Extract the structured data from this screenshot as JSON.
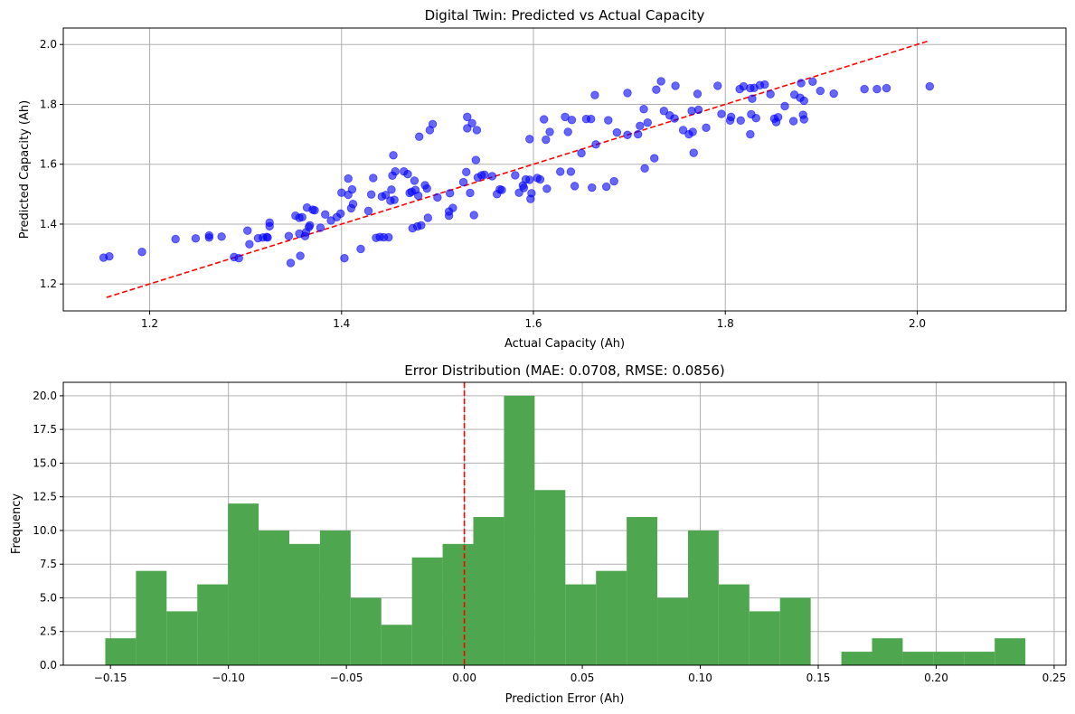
{
  "chart_data": [
    {
      "type": "scatter",
      "title": "Digital Twin: Predicted vs Actual Capacity",
      "xlabel": "Actual Capacity (Ah)",
      "ylabel": "Predicted Capacity (Ah)",
      "xlim": [
        1.11,
        2.155
      ],
      "ylim": [
        1.11,
        2.055
      ],
      "xticks": [
        1.2,
        1.4,
        1.6,
        1.8,
        2.0
      ],
      "xtick_labels": [
        "1.2",
        "1.4",
        "1.6",
        "1.8",
        "2.0"
      ],
      "yticks": [
        1.2,
        1.4,
        1.6,
        1.8,
        2.0
      ],
      "ytick_labels": [
        "1.2",
        "1.4",
        "1.6",
        "1.8",
        "2.0"
      ],
      "grid": true,
      "colors": {
        "points": "#0000ff",
        "reference_line": "#ff0000"
      },
      "reference_line": {
        "style": "dashed",
        "x": [
          1.155,
          2.012
        ],
        "y": [
          1.155,
          2.012
        ]
      },
      "points": [
        [
          1.152,
          1.288
        ],
        [
          1.158,
          1.292
        ],
        [
          1.192,
          1.307
        ],
        [
          1.227,
          1.35
        ],
        [
          1.248,
          1.352
        ],
        [
          1.262,
          1.355
        ],
        [
          1.262,
          1.362
        ],
        [
          1.275,
          1.358
        ],
        [
          1.288,
          1.29
        ],
        [
          1.293,
          1.286
        ],
        [
          1.302,
          1.378
        ],
        [
          1.304,
          1.333
        ],
        [
          1.313,
          1.353
        ],
        [
          1.318,
          1.355
        ],
        [
          1.322,
          1.357
        ],
        [
          1.323,
          1.355
        ],
        [
          1.325,
          1.405
        ],
        [
          1.325,
          1.393
        ],
        [
          1.345,
          1.36
        ],
        [
          1.347,
          1.27
        ],
        [
          1.352,
          1.428
        ],
        [
          1.356,
          1.421
        ],
        [
          1.356,
          1.368
        ],
        [
          1.357,
          1.294
        ],
        [
          1.359,
          1.423
        ],
        [
          1.362,
          1.36
        ],
        [
          1.363,
          1.373
        ],
        [
          1.364,
          1.455
        ],
        [
          1.366,
          1.39
        ],
        [
          1.367,
          1.396
        ],
        [
          1.37,
          1.448
        ],
        [
          1.372,
          1.446
        ],
        [
          1.378,
          1.388
        ],
        [
          1.383,
          1.432
        ],
        [
          1.389,
          1.412
        ],
        [
          1.395,
          1.423
        ],
        [
          1.399,
          1.435
        ],
        [
          1.4,
          1.505
        ],
        [
          1.403,
          1.286
        ],
        [
          1.407,
          1.498
        ],
        [
          1.407,
          1.552
        ],
        [
          1.41,
          1.453
        ],
        [
          1.411,
          1.516
        ],
        [
          1.412,
          1.467
        ],
        [
          1.42,
          1.317
        ],
        [
          1.428,
          1.444
        ],
        [
          1.431,
          1.499
        ],
        [
          1.433,
          1.554
        ],
        [
          1.436,
          1.354
        ],
        [
          1.44,
          1.357
        ],
        [
          1.442,
          1.492
        ],
        [
          1.444,
          1.356
        ],
        [
          1.446,
          1.497
        ],
        [
          1.449,
          1.356
        ],
        [
          1.451,
          1.478
        ],
        [
          1.452,
          1.515
        ],
        [
          1.453,
          1.562
        ],
        [
          1.454,
          1.63
        ],
        [
          1.455,
          1.481
        ],
        [
          1.456,
          1.576
        ],
        [
          1.465,
          1.576
        ],
        [
          1.469,
          1.567
        ],
        [
          1.471,
          1.504
        ],
        [
          1.473,
          1.508
        ],
        [
          1.474,
          1.386
        ],
        [
          1.476,
          1.545
        ],
        [
          1.477,
          1.514
        ],
        [
          1.479,
          1.392
        ],
        [
          1.48,
          1.495
        ],
        [
          1.481,
          1.692
        ],
        [
          1.483,
          1.396
        ],
        [
          1.487,
          1.53
        ],
        [
          1.489,
          1.519
        ],
        [
          1.49,
          1.421
        ],
        [
          1.492,
          1.714
        ],
        [
          1.495,
          1.734
        ],
        [
          1.5,
          1.489
        ],
        [
          1.512,
          1.428
        ],
        [
          1.512,
          1.442
        ],
        [
          1.513,
          1.503
        ],
        [
          1.516,
          1.454
        ],
        [
          1.527,
          1.54
        ],
        [
          1.53,
          1.574
        ],
        [
          1.531,
          1.72
        ],
        [
          1.531,
          1.758
        ],
        [
          1.534,
          1.504
        ],
        [
          1.536,
          1.737
        ],
        [
          1.538,
          1.43
        ],
        [
          1.54,
          1.614
        ],
        [
          1.541,
          1.714
        ],
        [
          1.542,
          1.556
        ],
        [
          1.546,
          1.563
        ],
        [
          1.549,
          1.565
        ],
        [
          1.557,
          1.56
        ],
        [
          1.562,
          1.5
        ],
        [
          1.565,
          1.516
        ],
        [
          1.567,
          1.514
        ],
        [
          1.581,
          1.563
        ],
        [
          1.585,
          1.505
        ],
        [
          1.589,
          1.529
        ],
        [
          1.59,
          1.521
        ],
        [
          1.592,
          1.549
        ],
        [
          1.596,
          1.684
        ],
        [
          1.596,
          1.548
        ],
        [
          1.597,
          1.484
        ],
        [
          1.598,
          1.503
        ],
        [
          1.604,
          1.554
        ],
        [
          1.607,
          1.549
        ],
        [
          1.611,
          1.75
        ],
        [
          1.613,
          1.682
        ],
        [
          1.614,
          1.518
        ],
        [
          1.617,
          1.708
        ],
        [
          1.628,
          1.575
        ],
        [
          1.633,
          1.758
        ],
        [
          1.636,
          1.708
        ],
        [
          1.639,
          1.575
        ],
        [
          1.64,
          1.748
        ],
        [
          1.643,
          1.527
        ],
        [
          1.65,
          1.637
        ],
        [
          1.655,
          1.751
        ],
        [
          1.66,
          1.751
        ],
        [
          1.661,
          1.522
        ],
        [
          1.664,
          1.831
        ],
        [
          1.665,
          1.666
        ],
        [
          1.676,
          1.525
        ],
        [
          1.678,
          1.747
        ],
        [
          1.684,
          1.543
        ],
        [
          1.687,
          1.706
        ],
        [
          1.698,
          1.838
        ],
        [
          1.698,
          1.698
        ],
        [
          1.709,
          1.7
        ],
        [
          1.711,
          1.728
        ],
        [
          1.715,
          1.784
        ],
        [
          1.716,
          1.586
        ],
        [
          1.719,
          1.739
        ],
        [
          1.726,
          1.62
        ],
        [
          1.728,
          1.849
        ],
        [
          1.733,
          1.877
        ],
        [
          1.736,
          1.778
        ],
        [
          1.742,
          1.763
        ],
        [
          1.747,
          1.753
        ],
        [
          1.748,
          1.862
        ],
        [
          1.756,
          1.714
        ],
        [
          1.762,
          1.7
        ],
        [
          1.765,
          1.778
        ],
        [
          1.766,
          1.708
        ],
        [
          1.767,
          1.638
        ],
        [
          1.771,
          1.835
        ],
        [
          1.772,
          1.782
        ],
        [
          1.78,
          1.722
        ],
        [
          1.792,
          1.862
        ],
        [
          1.796,
          1.768
        ],
        [
          1.805,
          1.746
        ],
        [
          1.806,
          1.758
        ],
        [
          1.815,
          1.851
        ],
        [
          1.816,
          1.746
        ],
        [
          1.819,
          1.86
        ],
        [
          1.826,
          1.7
        ],
        [
          1.826,
          1.854
        ],
        [
          1.827,
          1.767
        ],
        [
          1.828,
          1.819
        ],
        [
          1.83,
          1.855
        ],
        [
          1.832,
          1.754
        ],
        [
          1.836,
          1.864
        ],
        [
          1.841,
          1.866
        ],
        [
          1.847,
          1.834
        ],
        [
          1.851,
          1.752
        ],
        [
          1.853,
          1.741
        ],
        [
          1.855,
          1.757
        ],
        [
          1.862,
          1.794
        ],
        [
          1.871,
          1.744
        ],
        [
          1.872,
          1.832
        ],
        [
          1.878,
          1.822
        ],
        [
          1.879,
          1.871
        ],
        [
          1.881,
          1.765
        ],
        [
          1.882,
          1.75
        ],
        [
          1.882,
          1.812
        ],
        [
          1.891,
          1.876
        ],
        [
          1.899,
          1.845
        ],
        [
          1.913,
          1.836
        ],
        [
          1.945,
          1.851
        ],
        [
          1.958,
          1.851
        ],
        [
          1.968,
          1.854
        ],
        [
          2.013,
          1.86
        ]
      ]
    },
    {
      "type": "bar",
      "subtype": "histogram",
      "title": "Error Distribution (MAE: 0.0708, RMSE: 0.0856)",
      "xlabel": "Prediction Error (Ah)",
      "ylabel": "Frequency",
      "xlim": [
        -0.17,
        0.255
      ],
      "ylim": [
        0,
        21.0
      ],
      "xticks": [
        -0.15,
        -0.1,
        -0.05,
        0.0,
        0.05,
        0.1,
        0.15,
        0.2,
        0.25
      ],
      "xtick_labels": [
        "−0.15",
        "−0.10",
        "−0.05",
        "0.00",
        "0.05",
        "0.10",
        "0.15",
        "0.20",
        "0.25"
      ],
      "yticks": [
        0,
        2.5,
        5,
        7.5,
        10,
        12.5,
        15,
        17.5,
        20
      ],
      "ytick_labels": [
        "0.0",
        "2.5",
        "5.0",
        "7.5",
        "10.0",
        "12.5",
        "15.0",
        "17.5",
        "20.0"
      ],
      "grid": true,
      "colors": {
        "bars": "#4ea64e",
        "zero_line": "#ff0000"
      },
      "zero_line": {
        "style": "dashed",
        "x": 0.0
      },
      "bin_start": -0.1522,
      "bin_width": 0.013,
      "values": [
        2,
        7,
        4,
        6,
        12,
        10,
        9,
        10,
        5,
        3,
        8,
        9,
        11,
        20,
        13,
        6,
        7,
        11,
        5,
        10,
        6,
        4,
        5,
        0,
        1,
        2,
        1,
        1,
        1,
        2
      ]
    }
  ]
}
